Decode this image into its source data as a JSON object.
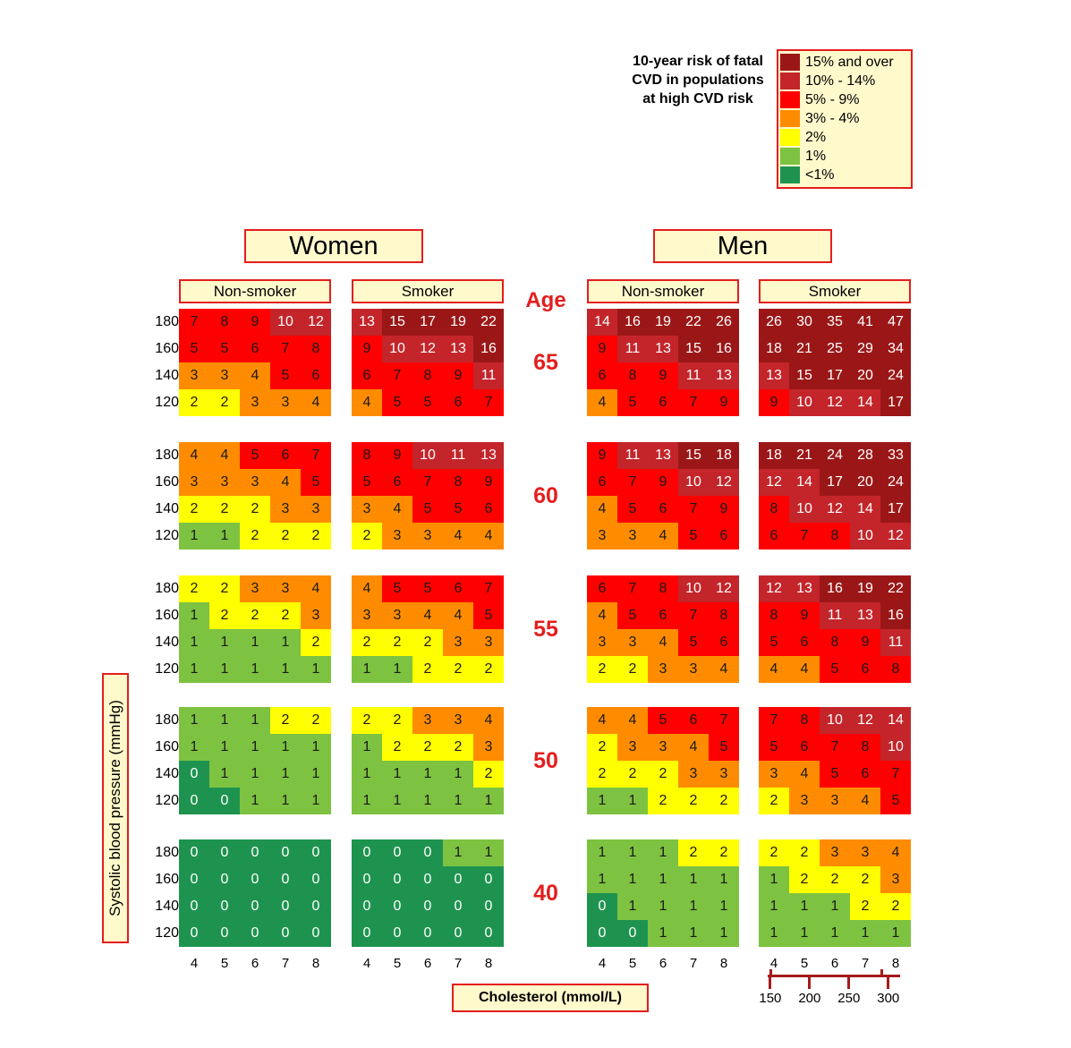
{
  "legend": {
    "title": "10-year risk of fatal CVD in populations at high CVD risk",
    "items": [
      {
        "label": "15% and over",
        "color": "#9b1717"
      },
      {
        "label": "10% - 14%",
        "color": "#c3252a"
      },
      {
        "label": "5% - 9%",
        "color": "#ff0000"
      },
      {
        "label": "3% - 4%",
        "color": "#ff8c00"
      },
      {
        "label": "2%",
        "color": "#ffff00"
      },
      {
        "label": "1%",
        "color": "#7dc241"
      },
      {
        "label": "<1%",
        "color": "#1e9350"
      }
    ]
  },
  "headers": {
    "women": "Women",
    "men": "Men",
    "non_smoker": "Non-smoker",
    "smoker": "Smoker",
    "age": "Age"
  },
  "axes": {
    "ylabel": "Systolic blood pressure (mmHg)",
    "xlabel": "Cholesterol (mmol/L)",
    "cholesterol_ticks": [
      "4",
      "5",
      "6",
      "7",
      "8"
    ],
    "sbp_ticks": [
      "180",
      "160",
      "140",
      "120"
    ],
    "mgdl_ticks": [
      "150",
      "200",
      "250",
      "300"
    ]
  },
  "chart_data": {
    "type": "heatmap",
    "title": "10-year risk of fatal CVD in populations at high CVD risk",
    "xlabel": "Cholesterol (mmol/L)",
    "ylabel": "Systolic blood pressure (mmHg)",
    "x": [
      4,
      5,
      6,
      7,
      8
    ],
    "y": [
      180,
      160,
      140,
      120
    ],
    "secondary_x": {
      "values": [
        150,
        200,
        250,
        300
      ]
    },
    "ages": [
      65,
      60,
      55,
      50,
      40
    ],
    "panels": [
      {
        "sex": "Women",
        "smoking": "Non-smoker",
        "grids": [
          [
            [
              7,
              8,
              9,
              10,
              12
            ],
            [
              5,
              5,
              6,
              7,
              8
            ],
            [
              3,
              3,
              4,
              5,
              6
            ],
            [
              2,
              2,
              3,
              3,
              4
            ]
          ],
          [
            [
              4,
              4,
              5,
              6,
              7
            ],
            [
              3,
              3,
              3,
              4,
              5
            ],
            [
              2,
              2,
              2,
              3,
              3
            ],
            [
              1,
              1,
              2,
              2,
              2
            ]
          ],
          [
            [
              2,
              2,
              3,
              3,
              4
            ],
            [
              1,
              2,
              2,
              2,
              3
            ],
            [
              1,
              1,
              1,
              1,
              2
            ],
            [
              1,
              1,
              1,
              1,
              1
            ]
          ],
          [
            [
              1,
              1,
              1,
              2,
              2
            ],
            [
              1,
              1,
              1,
              1,
              1
            ],
            [
              0,
              1,
              1,
              1,
              1
            ],
            [
              0,
              0,
              1,
              1,
              1
            ]
          ],
          [
            [
              0,
              0,
              0,
              0,
              0
            ],
            [
              0,
              0,
              0,
              0,
              0
            ],
            [
              0,
              0,
              0,
              0,
              0
            ],
            [
              0,
              0,
              0,
              0,
              0
            ]
          ]
        ]
      },
      {
        "sex": "Women",
        "smoking": "Smoker",
        "grids": [
          [
            [
              13,
              15,
              17,
              19,
              22
            ],
            [
              9,
              10,
              12,
              13,
              16
            ],
            [
              6,
              7,
              8,
              9,
              11
            ],
            [
              4,
              5,
              5,
              6,
              7
            ]
          ],
          [
            [
              8,
              9,
              10,
              11,
              13
            ],
            [
              5,
              6,
              7,
              8,
              9
            ],
            [
              3,
              4,
              5,
              5,
              6
            ],
            [
              2,
              3,
              3,
              4,
              4
            ]
          ],
          [
            [
              4,
              5,
              5,
              6,
              7
            ],
            [
              3,
              3,
              4,
              4,
              5
            ],
            [
              2,
              2,
              2,
              3,
              3
            ],
            [
              1,
              1,
              2,
              2,
              2
            ]
          ],
          [
            [
              2,
              2,
              3,
              3,
              4
            ],
            [
              1,
              2,
              2,
              2,
              3
            ],
            [
              1,
              1,
              1,
              1,
              2
            ],
            [
              1,
              1,
              1,
              1,
              1
            ]
          ],
          [
            [
              0,
              0,
              0,
              1,
              1
            ],
            [
              0,
              0,
              0,
              0,
              0
            ],
            [
              0,
              0,
              0,
              0,
              0
            ],
            [
              0,
              0,
              0,
              0,
              0
            ]
          ]
        ]
      },
      {
        "sex": "Men",
        "smoking": "Non-smoker",
        "grids": [
          [
            [
              14,
              16,
              19,
              22,
              26
            ],
            [
              9,
              11,
              13,
              15,
              16
            ],
            [
              6,
              8,
              9,
              11,
              13
            ],
            [
              4,
              5,
              6,
              7,
              9
            ]
          ],
          [
            [
              9,
              11,
              13,
              15,
              18
            ],
            [
              6,
              7,
              9,
              10,
              12
            ],
            [
              4,
              5,
              6,
              7,
              9
            ],
            [
              3,
              3,
              4,
              5,
              6
            ]
          ],
          [
            [
              6,
              7,
              8,
              10,
              12
            ],
            [
              4,
              5,
              6,
              7,
              8
            ],
            [
              3,
              3,
              4,
              5,
              6
            ],
            [
              2,
              2,
              3,
              3,
              4
            ]
          ],
          [
            [
              4,
              4,
              5,
              6,
              7
            ],
            [
              2,
              3,
              3,
              4,
              5
            ],
            [
              2,
              2,
              2,
              3,
              3
            ],
            [
              1,
              1,
              2,
              2,
              2
            ]
          ],
          [
            [
              1,
              1,
              1,
              2,
              2
            ],
            [
              1,
              1,
              1,
              1,
              1
            ],
            [
              0,
              1,
              1,
              1,
              1
            ],
            [
              0,
              0,
              1,
              1,
              1
            ]
          ]
        ]
      },
      {
        "sex": "Men",
        "smoking": "Smoker",
        "grids": [
          [
            [
              26,
              30,
              35,
              41,
              47
            ],
            [
              18,
              21,
              25,
              29,
              34
            ],
            [
              13,
              15,
              17,
              20,
              24
            ],
            [
              9,
              10,
              12,
              14,
              17
            ]
          ],
          [
            [
              18,
              21,
              24,
              28,
              33
            ],
            [
              12,
              14,
              17,
              20,
              24
            ],
            [
              8,
              10,
              12,
              14,
              17
            ],
            [
              6,
              7,
              8,
              10,
              12
            ]
          ],
          [
            [
              12,
              13,
              16,
              19,
              22
            ],
            [
              8,
              9,
              11,
              13,
              16
            ],
            [
              5,
              6,
              8,
              9,
              11
            ],
            [
              4,
              4,
              5,
              6,
              8
            ]
          ],
          [
            [
              7,
              8,
              10,
              12,
              14
            ],
            [
              5,
              6,
              7,
              8,
              10
            ],
            [
              3,
              4,
              5,
              6,
              7
            ],
            [
              2,
              3,
              3,
              4,
              5
            ]
          ],
          [
            [
              2,
              2,
              3,
              3,
              4
            ],
            [
              1,
              2,
              2,
              2,
              3
            ],
            [
              1,
              1,
              1,
              2,
              2
            ],
            [
              1,
              1,
              1,
              1,
              1
            ]
          ]
        ]
      }
    ]
  }
}
